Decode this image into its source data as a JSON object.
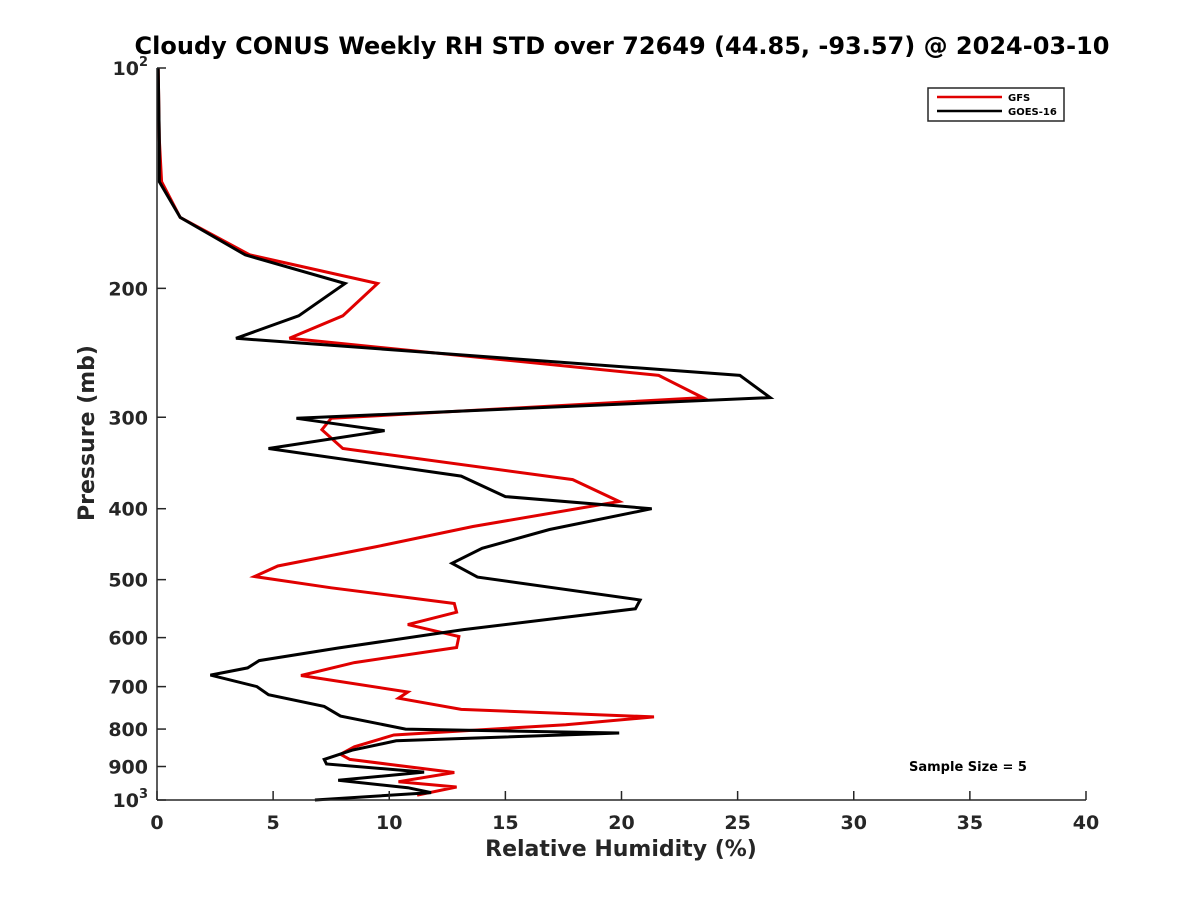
{
  "chart_data": {
    "type": "line",
    "title": "Cloudy CONUS Weekly RH STD over 72649 (44.85, -93.57) @ 2024-03-10",
    "xlabel": "Relative Humidity (%)",
    "ylabel": "Pressure (mb)",
    "xlim": [
      0,
      40
    ],
    "ylim": [
      100,
      1000
    ],
    "y_scale": "log",
    "y_reversed": true,
    "x_ticks": [
      0,
      5,
      10,
      15,
      20,
      25,
      30,
      35,
      40
    ],
    "y_ticks": [
      {
        "value": 100,
        "base": "10",
        "exp": "2"
      },
      {
        "value": 200,
        "label": "200"
      },
      {
        "value": 300,
        "label": "300"
      },
      {
        "value": 400,
        "label": "400"
      },
      {
        "value": 500,
        "label": "500"
      },
      {
        "value": 600,
        "label": "600"
      },
      {
        "value": 700,
        "label": "700"
      },
      {
        "value": 800,
        "label": "800"
      },
      {
        "value": 900,
        "label": "900"
      },
      {
        "value": 1000,
        "base": "10",
        "exp": "3"
      }
    ],
    "grid": false,
    "legend_position": "top-right",
    "annotation": "Sample Size = 5",
    "series": [
      {
        "name": "GFS",
        "color": "#e00000",
        "points": [
          [
            0.05,
            100
          ],
          [
            0.1,
            125
          ],
          [
            0.2,
            143
          ],
          [
            1.0,
            160
          ],
          [
            4.0,
            180
          ],
          [
            9.5,
            197
          ],
          [
            8.0,
            218
          ],
          [
            5.7,
            234
          ],
          [
            21.6,
            263
          ],
          [
            23.5,
            282
          ],
          [
            7.5,
            301
          ],
          [
            7.1,
            312
          ],
          [
            8.0,
            331
          ],
          [
            17.9,
            365
          ],
          [
            19.9,
            391
          ],
          [
            13.6,
            423
          ],
          [
            9.4,
            451
          ],
          [
            5.2,
            479
          ],
          [
            4.2,
            495
          ],
          [
            7.5,
            513
          ],
          [
            12.8,
            539
          ],
          [
            12.9,
            554
          ],
          [
            10.8,
            576
          ],
          [
            13.0,
            598
          ],
          [
            12.9,
            619
          ],
          [
            8.5,
            649
          ],
          [
            6.2,
            676
          ],
          [
            10.8,
            712
          ],
          [
            10.4,
            726
          ],
          [
            13.1,
            752
          ],
          [
            21.4,
            770
          ],
          [
            17.6,
            789
          ],
          [
            10.2,
            815
          ],
          [
            8.5,
            846
          ],
          [
            7.9,
            866
          ],
          [
            8.3,
            880
          ],
          [
            12.8,
            917
          ],
          [
            10.4,
            944
          ],
          [
            12.9,
            960
          ],
          [
            11.2,
            985
          ]
        ]
      },
      {
        "name": "GOES-16",
        "color": "#000000",
        "points": [
          [
            0.05,
            100
          ],
          [
            0.1,
            125
          ],
          [
            0.1,
            143
          ],
          [
            1.0,
            160
          ],
          [
            3.8,
            180
          ],
          [
            8.1,
            197
          ],
          [
            6.1,
            218
          ],
          [
            3.4,
            234
          ],
          [
            25.1,
            263
          ],
          [
            26.4,
            282
          ],
          [
            6.0,
            301
          ],
          [
            9.8,
            313
          ],
          [
            4.8,
            331
          ],
          [
            13.1,
            361
          ],
          [
            15.0,
            385
          ],
          [
            21.3,
            400
          ],
          [
            16.9,
            427
          ],
          [
            14.0,
            453
          ],
          [
            12.7,
            475
          ],
          [
            13.8,
            496
          ],
          [
            20.8,
            533
          ],
          [
            20.6,
            548
          ],
          [
            13.2,
            585
          ],
          [
            7.8,
            620
          ],
          [
            4.4,
            645
          ],
          [
            3.9,
            660
          ],
          [
            2.3,
            675
          ],
          [
            4.3,
            700
          ],
          [
            4.8,
            718
          ],
          [
            7.2,
            745
          ],
          [
            7.9,
            768
          ],
          [
            10.7,
            800
          ],
          [
            19.9,
            810
          ],
          [
            10.3,
            830
          ],
          [
            8.4,
            855
          ],
          [
            7.2,
            880
          ],
          [
            7.3,
            893
          ],
          [
            11.5,
            916
          ],
          [
            7.8,
            940
          ],
          [
            10.8,
            962
          ],
          [
            11.8,
            977
          ],
          [
            6.8,
            1000
          ]
        ]
      }
    ]
  }
}
